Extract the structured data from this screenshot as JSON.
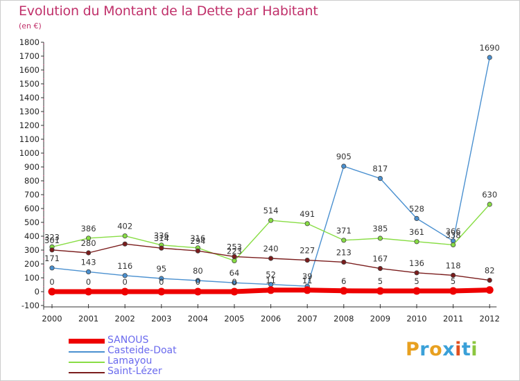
{
  "title": "Evolution du Montant de la Dette par Habitant",
  "subtitle": "(en €)",
  "logo": {
    "letters": [
      "P",
      "r",
      "o",
      "x",
      "i",
      "t",
      "i"
    ],
    "colors": [
      "#e8a020",
      "#3aa0d8",
      "#e8a020",
      "#3aa0d8",
      "#e05020",
      "#3aa0d8",
      "#8cc63f"
    ]
  },
  "chart_data": {
    "type": "line",
    "title": "Evolution du Montant de la Dette par Habitant",
    "ylabel": "(en €)",
    "x": [
      2000,
      2001,
      2002,
      2003,
      2004,
      2005,
      2006,
      2007,
      2008,
      2009,
      2010,
      2011,
      2012
    ],
    "ylim": [
      -100,
      1800
    ],
    "yticks": [
      -100,
      0,
      100,
      200,
      300,
      400,
      500,
      600,
      700,
      800,
      900,
      1000,
      1100,
      1200,
      1300,
      1400,
      1500,
      1600,
      1700,
      1800
    ],
    "grid": false,
    "legend_position": "bottom-left",
    "series": [
      {
        "name": "SANOUS",
        "color": "#ee0000",
        "values": [
          0,
          0,
          0,
          0,
          0,
          0,
          11,
          11,
          6,
          5,
          5,
          5,
          12
        ]
      },
      {
        "name": "Casteide-Doat",
        "color": "#4a90d0",
        "values": [
          171,
          143,
          116,
          95,
          80,
          64,
          52,
          39,
          905,
          817,
          528,
          366,
          1690
        ]
      },
      {
        "name": "Lamayou",
        "color": "#88dd44",
        "values": [
          323,
          386,
          402,
          336,
          316,
          223,
          514,
          491,
          371,
          385,
          361,
          338,
          630
        ]
      },
      {
        "name": "Saint-Lézer",
        "color": "#7a1c1c",
        "values": [
          301,
          280,
          344,
          314,
          294,
          253,
          240,
          227,
          213,
          167,
          136,
          118,
          82
        ]
      }
    ],
    "data_labels": {
      "SANOUS": [
        "0",
        "0",
        "0",
        "0",
        "0",
        "0",
        "11",
        "11",
        "6",
        "5",
        "5",
        "5",
        ""
      ],
      "Casteide-Doat": [
        "171",
        "143",
        "116",
        "95",
        "80",
        "64",
        "52",
        "39",
        "905",
        "817",
        "528",
        "366",
        "1690"
      ],
      "Lamayou": [
        "323",
        "386",
        "402",
        "336",
        "316",
        "223",
        "514",
        "491",
        "371",
        "385",
        "361",
        "338",
        "630"
      ],
      "Saint-Lézer": [
        "301",
        "280",
        "",
        "314",
        "294",
        "253",
        "240",
        "227",
        "213",
        "167",
        "136",
        "118",
        "82"
      ]
    }
  }
}
